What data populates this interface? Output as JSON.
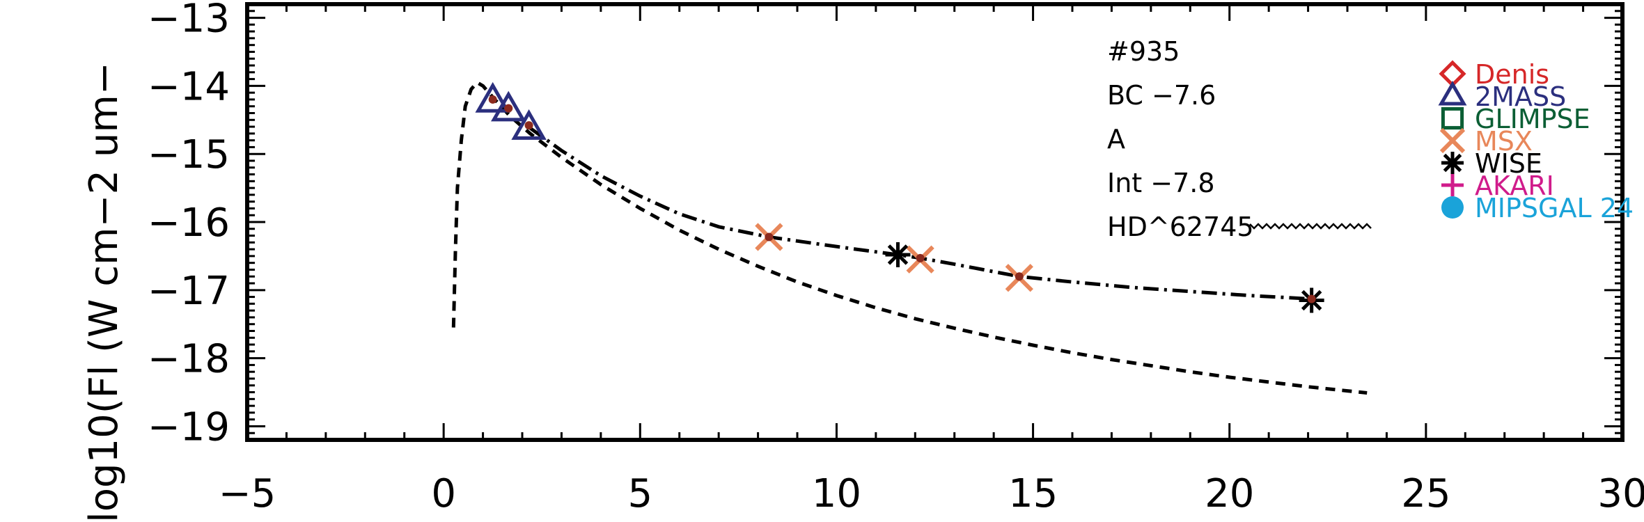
{
  "chart_data": {
    "type": "scatter",
    "title": "",
    "xlabel": "",
    "ylabel": "log10(Fl (W cm−2 um−",
    "xlim": [
      -5,
      30
    ],
    "ylim": [
      -19.2,
      -12.8
    ],
    "x_ticks": [
      -5,
      0,
      5,
      10,
      15,
      20,
      25,
      30
    ],
    "x_tick_labels": [
      "−5",
      "0",
      "5",
      "10",
      "15",
      "20",
      "25",
      "30"
    ],
    "y_ticks": [
      -13,
      -14,
      -15,
      -16,
      -17,
      -18,
      -19
    ],
    "y_tick_labels": [
      "−13",
      "−14",
      "−15",
      "−16",
      "−17",
      "−18",
      "−19"
    ],
    "grid": false,
    "legend_position": "right",
    "annotations": [
      {
        "text": "#935"
      },
      {
        "text": "BC  −7.6"
      },
      {
        "text": "A"
      },
      {
        "text": "Int  −7.8"
      },
      {
        "text": "HD^62745"
      }
    ],
    "legend": [
      {
        "name": "Denis",
        "marker": "diamond",
        "color": "#d62728"
      },
      {
        "name": "2MASS",
        "marker": "triangle",
        "color": "#2b2f7e"
      },
      {
        "name": "GLIMPSE",
        "marker": "square",
        "color": "#0b5e34"
      },
      {
        "name": "MSX",
        "marker": "x",
        "color": "#e8875a"
      },
      {
        "name": "WISE",
        "marker": "asterisk",
        "color": "#000000"
      },
      {
        "name": "AKARI",
        "marker": "plus",
        "color": "#d01c8b"
      },
      {
        "name": "MIPSGAL 24",
        "marker": "circle",
        "color": "#1aa3d9"
      }
    ],
    "series": [
      {
        "name": "2MASS",
        "marker": "triangle",
        "color": "#2b2f7e",
        "points": [
          [
            1.25,
            -14.22
          ],
          [
            1.65,
            -14.35
          ],
          [
            2.17,
            -14.62
          ]
        ]
      },
      {
        "name": "MSX",
        "marker": "x",
        "color": "#e8875a",
        "points": [
          [
            8.28,
            -16.22
          ],
          [
            12.13,
            -16.55
          ],
          [
            14.65,
            -16.82
          ]
        ]
      },
      {
        "name": "WISE",
        "marker": "asterisk",
        "color": "#000000",
        "points": [
          [
            11.56,
            -16.48
          ],
          [
            22.09,
            -17.15
          ]
        ]
      },
      {
        "name": "observed",
        "style": "dot",
        "color": "#8b2a1e",
        "points": [
          [
            1.25,
            -14.2
          ],
          [
            1.65,
            -14.33
          ],
          [
            2.17,
            -14.58
          ],
          [
            8.28,
            -16.22
          ],
          [
            12.13,
            -16.53
          ],
          [
            14.65,
            -16.8
          ],
          [
            22.09,
            -17.13
          ]
        ]
      }
    ],
    "curves": [
      {
        "style": "dashed",
        "color": "#000000",
        "x": [
          0.25,
          0.3,
          0.35,
          0.45,
          0.55,
          0.7,
          0.85,
          1.0,
          1.3,
          1.7,
          2.2,
          3.0,
          4.0,
          5.0,
          6.0,
          7.0,
          8.0,
          9.0,
          10.0,
          11.0,
          12.0,
          13.0,
          14.0,
          15.0,
          16.0,
          17.0,
          18.0,
          19.0,
          20.0,
          21.0,
          22.0,
          23.0,
          23.5
        ],
        "y": [
          -17.55,
          -16.4,
          -15.5,
          -14.8,
          -14.3,
          -14.05,
          -13.95,
          -14.0,
          -14.2,
          -14.45,
          -14.7,
          -15.05,
          -15.45,
          -15.8,
          -16.12,
          -16.4,
          -16.65,
          -16.88,
          -17.08,
          -17.26,
          -17.42,
          -17.56,
          -17.69,
          -17.81,
          -17.92,
          -18.02,
          -18.11,
          -18.2,
          -18.28,
          -18.35,
          -18.42,
          -18.48,
          -18.51
        ]
      },
      {
        "style": "dashdot",
        "color": "#000000",
        "x": [
          2.2,
          3.0,
          4.0,
          5.0,
          6.0,
          7.0,
          8.28,
          9.5,
          10.5,
          11.56,
          12.13,
          13.0,
          14.65,
          16.0,
          17.5,
          19.0,
          20.5,
          22.09
        ],
        "y": [
          -14.62,
          -14.95,
          -15.32,
          -15.62,
          -15.88,
          -16.07,
          -16.22,
          -16.32,
          -16.4,
          -16.48,
          -16.53,
          -16.62,
          -16.8,
          -16.88,
          -16.96,
          -17.02,
          -17.08,
          -17.13
        ]
      }
    ]
  }
}
